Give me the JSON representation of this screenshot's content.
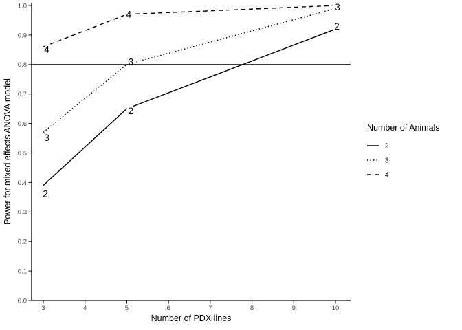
{
  "chart_data": {
    "type": "line",
    "title": "",
    "xlabel": "Number of PDX lines",
    "ylabel": "Power for mixed effects ANOVA model",
    "x": [
      3,
      5,
      10
    ],
    "series": [
      {
        "name": "2",
        "style": "solid",
        "values": [
          0.39,
          0.65,
          0.92
        ]
      },
      {
        "name": "3",
        "style": "dotted",
        "values": [
          0.57,
          0.8,
          0.99
        ]
      },
      {
        "name": "4",
        "style": "dashed",
        "values": [
          0.86,
          0.97,
          1.0
        ]
      }
    ],
    "point_labels": true,
    "reference_line_y": 0.8,
    "xlim": [
      3,
      10
    ],
    "ylim": [
      0.0,
      1.0
    ],
    "x_ticks": [
      3,
      4,
      5,
      6,
      7,
      8,
      9,
      10
    ],
    "x_tick_labels": [
      "3",
      "4",
      "5",
      "6",
      "7",
      "8",
      "9",
      "10"
    ],
    "y_ticks": [
      0.0,
      0.1,
      0.2,
      0.3,
      0.4,
      0.5,
      0.6,
      0.7,
      0.8,
      0.9,
      1.0
    ],
    "y_tick_labels": [
      "0.0",
      "0.1",
      "0.2",
      "0.3",
      "0.4",
      "0.5",
      "0.6",
      "0.7",
      "0.8",
      "0.9",
      "1.0"
    ],
    "grid": false,
    "legend": {
      "title": "Number of Animals",
      "position": "right",
      "entries": [
        {
          "label": "2",
          "style": "solid"
        },
        {
          "label": "3",
          "style": "dotted"
        },
        {
          "label": "4",
          "style": "dashed"
        }
      ]
    }
  },
  "colors": {
    "background": "#ffffff",
    "line": "#000000",
    "axis": "#000000",
    "tick_label": "#4d4d4d",
    "title_text": "#000000",
    "halo": "#ffffff"
  }
}
